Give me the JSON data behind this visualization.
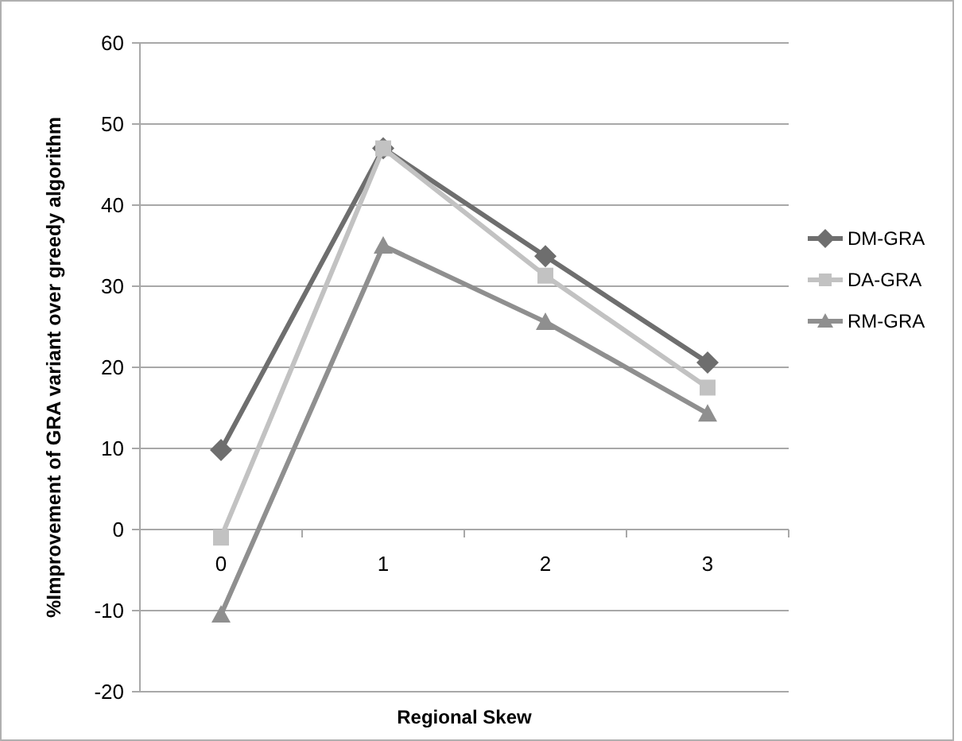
{
  "chart_data": {
    "type": "line",
    "xlabel": "Regional Skew",
    "ylabel": "%Improvement of GRA variant over greedy algorithm",
    "categories": [
      "0",
      "1",
      "2",
      "3"
    ],
    "series": [
      {
        "name": "DM-GRA",
        "color": "#6e6e6e",
        "values": [
          9.8,
          47,
          33.7,
          20.6
        ],
        "marker": "diamond"
      },
      {
        "name": "DA-GRA",
        "color": "#c2c2c2",
        "values": [
          -1,
          47,
          31.3,
          17.5
        ],
        "marker": "square"
      },
      {
        "name": "RM-GRA",
        "color": "#8f8f8f",
        "values": [
          -10.5,
          35,
          25.6,
          14.3
        ],
        "marker": "triangle"
      }
    ],
    "ylim": [
      -20,
      60
    ],
    "yticks": [
      -20,
      -10,
      0,
      10,
      20,
      30,
      40,
      50,
      60
    ],
    "grid": "y",
    "legend": "right"
  }
}
